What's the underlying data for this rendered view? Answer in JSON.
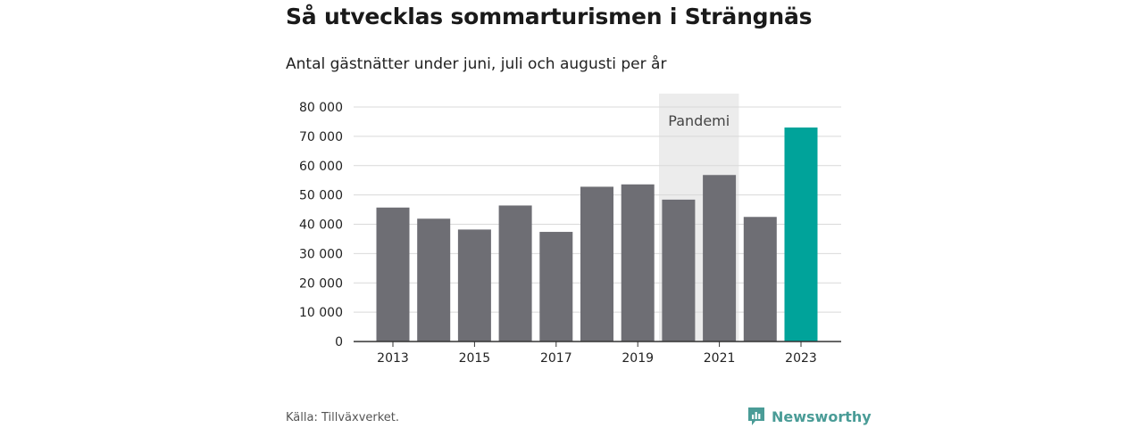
{
  "title": "Så utvecklas sommarturismen i Strängnäs",
  "subtitle": "Antal gästnätter under juni, juli och augusti per år",
  "source": "Källa: Tillväxverket.",
  "brand": "Newsworthy",
  "colors": {
    "bar": "#6e6e74",
    "highlight": "#00a39a",
    "pandemic_band": "#ececec",
    "grid": "#d9d9d9",
    "axis": "#333333",
    "brand": "#4a9c97"
  },
  "chart_data": {
    "type": "bar",
    "categories": [
      "2013",
      "2014",
      "2015",
      "2016",
      "2017",
      "2018",
      "2019",
      "2020",
      "2021",
      "2022",
      "2023"
    ],
    "values": [
      45700,
      41900,
      38200,
      46400,
      37400,
      52800,
      53600,
      48400,
      56800,
      42500,
      73000
    ],
    "highlight_category": "2023",
    "x_tick_labels": [
      "2013",
      "2015",
      "2017",
      "2019",
      "2021",
      "2023"
    ],
    "y_ticks": [
      0,
      10000,
      20000,
      30000,
      40000,
      50000,
      60000,
      70000,
      80000
    ],
    "y_tick_labels": [
      "0",
      "10 000",
      "20 000",
      "30 000",
      "40 000",
      "50 000",
      "60 000",
      "70 000",
      "80 000"
    ],
    "ylim": [
      0,
      84000
    ],
    "grid": true,
    "annotation": {
      "label": "Pandemi",
      "from": "2020",
      "to": "2021"
    }
  }
}
